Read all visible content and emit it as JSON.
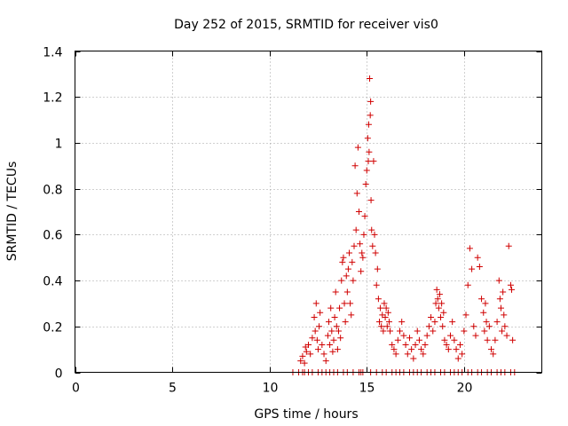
{
  "chart_data": {
    "type": "scatter",
    "title": "Day 252 of 2015, SRMTID for receiver vis0",
    "xlabel": "GPS time / hours",
    "ylabel": "SRMTID / TECUs",
    "xlim": [
      0,
      24
    ],
    "ylim": [
      0,
      1.4
    ],
    "xticks": [
      0,
      5,
      10,
      15,
      20
    ],
    "yticks": [
      0,
      0.2,
      0.4,
      0.6,
      0.8,
      1,
      1.2,
      1.4
    ],
    "ytick_labels": [
      "0",
      "0.2",
      "0.4",
      "0.6",
      "0.8",
      "1",
      "1.2",
      "1.4"
    ],
    "grid": true,
    "marker": "+",
    "color": "#d00000",
    "series": [
      {
        "name": "vis0",
        "points": [
          [
            11.2,
            0.0
          ],
          [
            11.5,
            0.0
          ],
          [
            11.7,
            0.0
          ],
          [
            11.8,
            0.0
          ],
          [
            12.0,
            0.0
          ],
          [
            12.2,
            0.0
          ],
          [
            12.5,
            0.0
          ],
          [
            12.7,
            0.0
          ],
          [
            12.9,
            0.0
          ],
          [
            13.1,
            0.0
          ],
          [
            13.3,
            0.0
          ],
          [
            13.5,
            0.0
          ],
          [
            13.8,
            0.0
          ],
          [
            14.0,
            0.0
          ],
          [
            14.3,
            0.0
          ],
          [
            14.6,
            0.0
          ],
          [
            14.7,
            0.0
          ],
          [
            14.8,
            0.0
          ],
          [
            15.2,
            0.0
          ],
          [
            15.5,
            0.0
          ],
          [
            15.8,
            0.0
          ],
          [
            16.0,
            0.0
          ],
          [
            16.3,
            0.0
          ],
          [
            16.5,
            0.0
          ],
          [
            16.7,
            0.0
          ],
          [
            16.9,
            0.0
          ],
          [
            17.2,
            0.0
          ],
          [
            17.4,
            0.0
          ],
          [
            17.6,
            0.0
          ],
          [
            17.8,
            0.0
          ],
          [
            18.1,
            0.0
          ],
          [
            18.3,
            0.0
          ],
          [
            18.5,
            0.0
          ],
          [
            18.8,
            0.0
          ],
          [
            19.0,
            0.0
          ],
          [
            19.3,
            0.0
          ],
          [
            19.5,
            0.0
          ],
          [
            19.7,
            0.0
          ],
          [
            19.9,
            0.0
          ],
          [
            20.2,
            0.0
          ],
          [
            20.4,
            0.0
          ],
          [
            20.7,
            0.0
          ],
          [
            20.9,
            0.0
          ],
          [
            21.2,
            0.0
          ],
          [
            21.4,
            0.0
          ],
          [
            21.7,
            0.0
          ],
          [
            21.9,
            0.0
          ],
          [
            22.1,
            0.0
          ],
          [
            22.4,
            0.0
          ],
          [
            22.6,
            0.0
          ],
          [
            11.6,
            0.05
          ],
          [
            11.7,
            0.07
          ],
          [
            11.8,
            0.04
          ],
          [
            11.9,
            0.09
          ],
          [
            12.0,
            0.12
          ],
          [
            12.1,
            0.08
          ],
          [
            12.2,
            0.15
          ],
          [
            11.85,
            0.11
          ],
          [
            12.3,
            0.24
          ],
          [
            12.35,
            0.18
          ],
          [
            12.4,
            0.3
          ],
          [
            12.45,
            0.14
          ],
          [
            12.5,
            0.1
          ],
          [
            12.6,
            0.26
          ],
          [
            12.55,
            0.2
          ],
          [
            12.7,
            0.12
          ],
          [
            12.8,
            0.08
          ],
          [
            12.9,
            0.05
          ],
          [
            13.0,
            0.16
          ],
          [
            13.05,
            0.22
          ],
          [
            13.1,
            0.12
          ],
          [
            13.15,
            0.28
          ],
          [
            13.2,
            0.18
          ],
          [
            13.25,
            0.09
          ],
          [
            13.3,
            0.14
          ],
          [
            13.35,
            0.24
          ],
          [
            13.4,
            0.35
          ],
          [
            13.45,
            0.2
          ],
          [
            13.5,
            0.1
          ],
          [
            13.55,
            0.18
          ],
          [
            13.6,
            0.28
          ],
          [
            13.65,
            0.15
          ],
          [
            13.7,
            0.4
          ],
          [
            13.75,
            0.48
          ],
          [
            13.8,
            0.5
          ],
          [
            13.85,
            0.3
          ],
          [
            13.9,
            0.22
          ],
          [
            13.95,
            0.42
          ],
          [
            14.0,
            0.35
          ],
          [
            14.05,
            0.45
          ],
          [
            14.1,
            0.52
          ],
          [
            14.15,
            0.3
          ],
          [
            14.2,
            0.25
          ],
          [
            14.25,
            0.48
          ],
          [
            14.3,
            0.4
          ],
          [
            14.35,
            0.55
          ],
          [
            14.4,
            0.9
          ],
          [
            14.45,
            0.62
          ],
          [
            14.5,
            0.78
          ],
          [
            14.55,
            0.98
          ],
          [
            14.6,
            0.7
          ],
          [
            14.65,
            0.56
          ],
          [
            14.7,
            0.44
          ],
          [
            14.75,
            0.52
          ],
          [
            14.8,
            0.5
          ],
          [
            14.85,
            0.6
          ],
          [
            14.9,
            0.68
          ],
          [
            14.95,
            0.82
          ],
          [
            15.0,
            0.88
          ],
          [
            15.05,
            1.02
          ],
          [
            15.08,
            0.92
          ],
          [
            15.1,
            1.08
          ],
          [
            15.12,
            0.96
          ],
          [
            15.15,
            1.28
          ],
          [
            15.18,
            1.12
          ],
          [
            15.2,
            1.18
          ],
          [
            15.22,
            0.75
          ],
          [
            15.25,
            0.62
          ],
          [
            15.3,
            0.55
          ],
          [
            15.35,
            0.92
          ],
          [
            15.4,
            0.6
          ],
          [
            15.45,
            0.52
          ],
          [
            15.5,
            0.38
          ],
          [
            15.55,
            0.45
          ],
          [
            15.6,
            0.32
          ],
          [
            15.65,
            0.22
          ],
          [
            15.7,
            0.28
          ],
          [
            15.75,
            0.2
          ],
          [
            15.8,
            0.25
          ],
          [
            15.85,
            0.18
          ],
          [
            15.9,
            0.3
          ],
          [
            15.95,
            0.24
          ],
          [
            16.0,
            0.28
          ],
          [
            16.05,
            0.2
          ],
          [
            16.1,
            0.26
          ],
          [
            16.15,
            0.22
          ],
          [
            16.2,
            0.18
          ],
          [
            16.3,
            0.12
          ],
          [
            16.4,
            0.1
          ],
          [
            16.5,
            0.08
          ],
          [
            16.6,
            0.14
          ],
          [
            16.7,
            0.18
          ],
          [
            16.8,
            0.22
          ],
          [
            16.9,
            0.16
          ],
          [
            17.0,
            0.12
          ],
          [
            17.1,
            0.08
          ],
          [
            17.2,
            0.15
          ],
          [
            17.3,
            0.1
          ],
          [
            17.4,
            0.06
          ],
          [
            17.5,
            0.12
          ],
          [
            17.6,
            0.18
          ],
          [
            17.7,
            0.14
          ],
          [
            17.8,
            0.1
          ],
          [
            17.9,
            0.08
          ],
          [
            18.0,
            0.12
          ],
          [
            18.1,
            0.16
          ],
          [
            18.2,
            0.2
          ],
          [
            18.3,
            0.24
          ],
          [
            18.4,
            0.18
          ],
          [
            18.5,
            0.22
          ],
          [
            18.55,
            0.3
          ],
          [
            18.6,
            0.36
          ],
          [
            18.65,
            0.32
          ],
          [
            18.7,
            0.28
          ],
          [
            18.75,
            0.34
          ],
          [
            18.8,
            0.24
          ],
          [
            18.85,
            0.3
          ],
          [
            18.9,
            0.2
          ],
          [
            18.95,
            0.26
          ],
          [
            19.0,
            0.14
          ],
          [
            19.1,
            0.12
          ],
          [
            19.2,
            0.1
          ],
          [
            19.3,
            0.16
          ],
          [
            19.4,
            0.22
          ],
          [
            19.5,
            0.14
          ],
          [
            19.6,
            0.1
          ],
          [
            19.7,
            0.06
          ],
          [
            19.8,
            0.12
          ],
          [
            19.9,
            0.08
          ],
          [
            20.0,
            0.18
          ],
          [
            20.1,
            0.25
          ],
          [
            20.2,
            0.38
          ],
          [
            20.3,
            0.54
          ],
          [
            20.4,
            0.45
          ],
          [
            20.5,
            0.2
          ],
          [
            20.6,
            0.16
          ],
          [
            20.7,
            0.5
          ],
          [
            20.8,
            0.46
          ],
          [
            20.9,
            0.32
          ],
          [
            21.0,
            0.26
          ],
          [
            21.05,
            0.18
          ],
          [
            21.1,
            0.3
          ],
          [
            21.15,
            0.22
          ],
          [
            21.2,
            0.14
          ],
          [
            21.3,
            0.2
          ],
          [
            21.4,
            0.1
          ],
          [
            21.5,
            0.08
          ],
          [
            21.6,
            0.14
          ],
          [
            21.7,
            0.22
          ],
          [
            21.8,
            0.4
          ],
          [
            21.85,
            0.32
          ],
          [
            21.9,
            0.28
          ],
          [
            21.95,
            0.18
          ],
          [
            22.0,
            0.35
          ],
          [
            22.05,
            0.25
          ],
          [
            22.1,
            0.2
          ],
          [
            22.2,
            0.16
          ],
          [
            22.3,
            0.55
          ],
          [
            22.4,
            0.38
          ],
          [
            22.45,
            0.36
          ],
          [
            22.5,
            0.14
          ]
        ]
      }
    ]
  }
}
